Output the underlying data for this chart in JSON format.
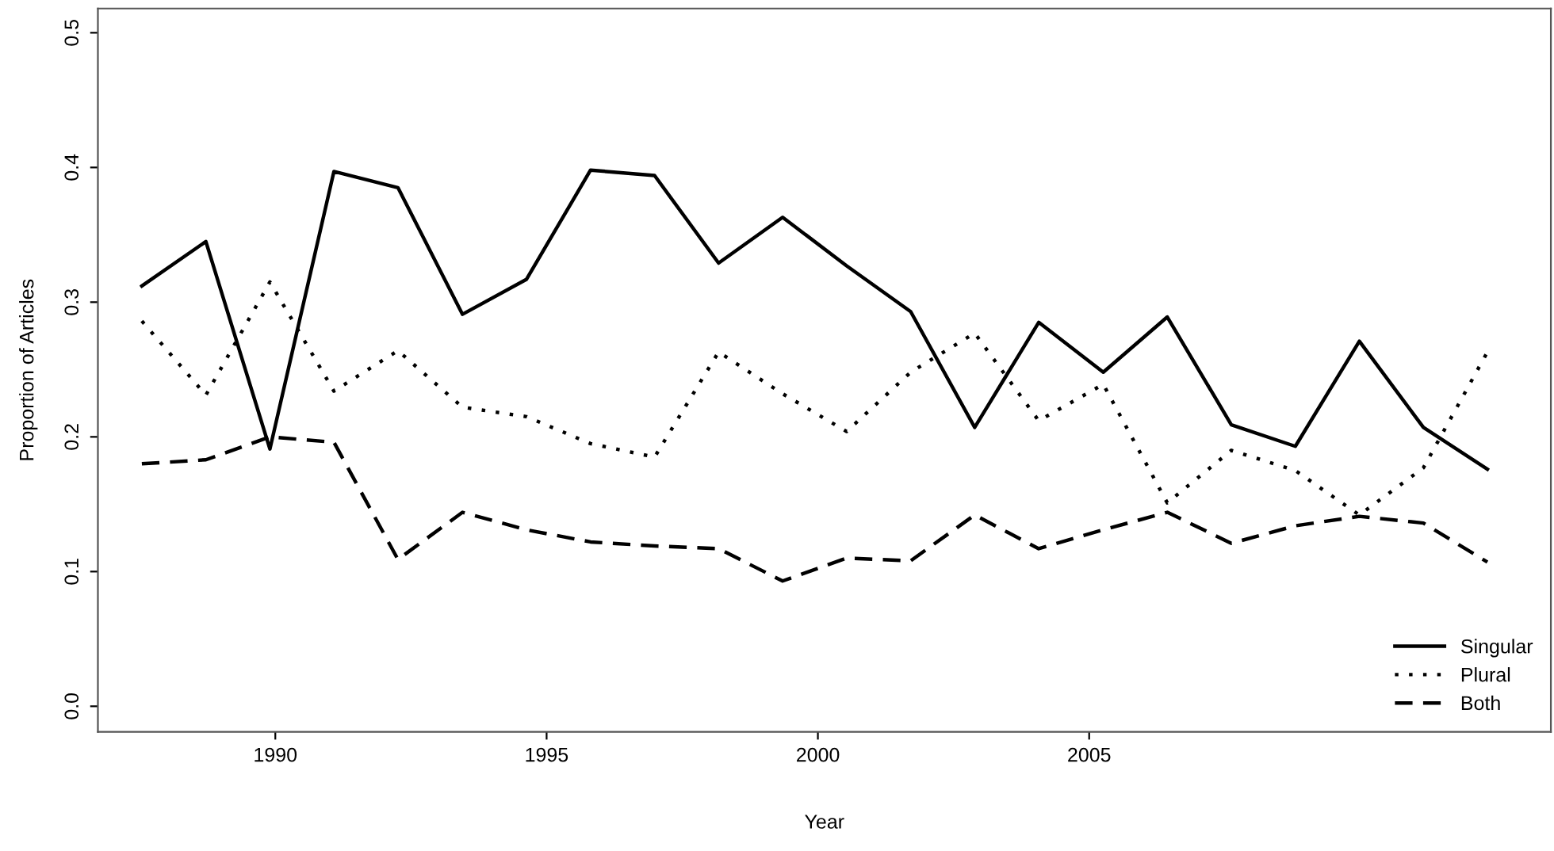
{
  "chart_data": {
    "type": "line",
    "xlabel": "Year",
    "ylabel": "Proportion of Articles",
    "x": [
      1987.54,
      1988.72,
      1989.9,
      1991.08,
      1992.26,
      1993.45,
      1994.63,
      1995.81,
      1996.99,
      1998.17,
      1999.35,
      2000.53,
      2001.71,
      2002.89,
      2004.07,
      2005.26,
      2006.44,
      2007.62,
      2008.8,
      2009.98,
      2011.16,
      2012.34
    ],
    "series": [
      {
        "name": "Singular",
        "color": "#000000",
        "line_style": "solid",
        "values": [
          0.312,
          0.345,
          0.191,
          0.397,
          0.385,
          0.291,
          0.317,
          0.398,
          0.394,
          0.329,
          0.363,
          0.327,
          0.293,
          0.207,
          0.285,
          0.248,
          0.289,
          0.209,
          0.193,
          0.271,
          0.207,
          0.176
        ]
      },
      {
        "name": "Plural",
        "color": "#000000",
        "line_style": "dotted",
        "values": [
          0.286,
          0.231,
          0.315,
          0.234,
          0.264,
          0.222,
          0.215,
          0.195,
          0.185,
          0.263,
          0.232,
          0.204,
          0.248,
          0.277,
          0.212,
          0.239,
          0.151,
          0.19,
          0.175,
          0.142,
          0.177,
          0.263
        ]
      },
      {
        "name": "Both",
        "color": "#000000",
        "line_style": "dashed",
        "values": [
          0.18,
          0.183,
          0.2,
          0.196,
          0.109,
          0.144,
          0.131,
          0.122,
          0.119,
          0.117,
          0.093,
          0.11,
          0.108,
          0.142,
          0.117,
          0.131,
          0.144,
          0.121,
          0.134,
          0.141,
          0.136,
          0.107
        ]
      }
    ],
    "xlim": [
      1986.73,
      2013.51
    ],
    "ylim": [
      -0.019,
      0.518
    ],
    "xticks": [
      1990,
      1995,
      2000,
      2005
    ],
    "yticks": [
      {
        "value": 0,
        "label": "0.0"
      },
      0.1,
      0.2,
      0.3,
      0.4,
      0.5
    ],
    "grid": false,
    "legend": "bottom right",
    "marker": "none"
  }
}
